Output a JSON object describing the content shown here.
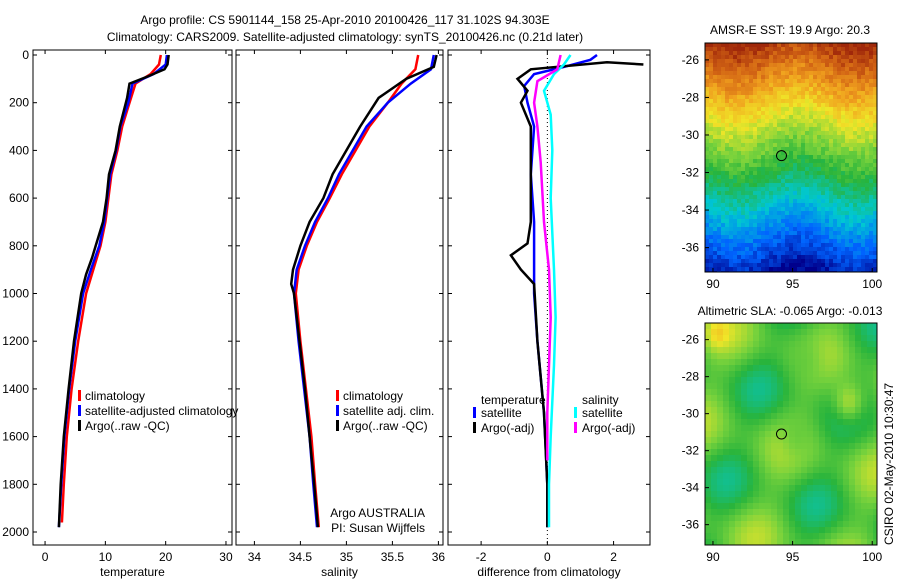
{
  "chart_data": {
    "type": "line",
    "title_line1": "Argo profile: CS 5901144_158 25-Apr-2010 20100426_117 31.102S 94.303E",
    "title_line2": "Climatology: CARS2009. Satellite-adjusted climatology: synTS_20100426.nc (0.21d later)",
    "footer": "CSIRO 02-May-2010 10:30:47",
    "colors": {
      "climatology": "#ff0000",
      "satellite": "#0000ff",
      "argo": "#000000",
      "sal_satellite": "#00ffff",
      "sal_argo": "#ff00ff"
    },
    "depth_axis": {
      "ylim": [
        0,
        2000
      ],
      "ticks": [
        0,
        200,
        400,
        600,
        800,
        1000,
        1200,
        1400,
        1600,
        1800,
        2000
      ],
      "reversed": true
    },
    "panels": [
      {
        "xlabel": "temperature",
        "xlim": [
          -2,
          31
        ],
        "xticks": [
          0,
          10,
          20,
          30
        ],
        "legend": [
          "climatology",
          "satellite-adjusted climatology",
          "Argo(..raw -QC)"
        ],
        "series": [
          {
            "name": "climatology",
            "color": "#ff0000",
            "points": [
              [
                19.2,
                0
              ],
              [
                18.9,
                40
              ],
              [
                17.5,
                80
              ],
              [
                15,
                120
              ],
              [
                14,
                200
              ],
              [
                12.8,
                300
              ],
              [
                12,
                400
              ],
              [
                11,
                500
              ],
              [
                10.5,
                600
              ],
              [
                10,
                700
              ],
              [
                9.2,
                800
              ],
              [
                8,
                900
              ],
              [
                6.8,
                1000
              ],
              [
                5.5,
                1200
              ],
              [
                4.4,
                1400
              ],
              [
                3.6,
                1600
              ],
              [
                3.1,
                1800
              ],
              [
                2.8,
                1960
              ]
            ]
          },
          {
            "name": "satellite",
            "color": "#0000ff",
            "points": [
              [
                20.2,
                0
              ],
              [
                20,
                40
              ],
              [
                18,
                80
              ],
              [
                14.5,
                120
              ],
              [
                13.8,
                200
              ],
              [
                12.5,
                300
              ],
              [
                11.8,
                400
              ],
              [
                10.8,
                500
              ],
              [
                10.3,
                600
              ],
              [
                9.8,
                700
              ],
              [
                9,
                800
              ],
              [
                7.6,
                900
              ],
              [
                6.3,
                1000
              ],
              [
                5,
                1200
              ],
              [
                4,
                1400
              ],
              [
                3.2,
                1600
              ],
              [
                2.7,
                1800
              ],
              [
                2.3,
                1980
              ]
            ]
          },
          {
            "name": "argo",
            "color": "#000000",
            "points": [
              [
                20.5,
                0
              ],
              [
                20.3,
                40
              ],
              [
                19.8,
                60
              ],
              [
                17,
                90
              ],
              [
                14,
                120
              ],
              [
                13.6,
                180
              ],
              [
                12.4,
                300
              ],
              [
                11.7,
                400
              ],
              [
                10.6,
                500
              ],
              [
                10.2,
                600
              ],
              [
                9.6,
                700
              ],
              [
                8.4,
                800
              ],
              [
                7.8,
                850
              ],
              [
                6.8,
                920
              ],
              [
                6,
                1000
              ],
              [
                4.8,
                1200
              ],
              [
                3.9,
                1400
              ],
              [
                3.1,
                1600
              ],
              [
                2.6,
                1800
              ],
              [
                2.3,
                1980
              ]
            ]
          }
        ]
      },
      {
        "xlabel": "salinity",
        "xlim": [
          33.8,
          36.05
        ],
        "xticks": [
          34,
          34.5,
          35,
          35.5,
          36
        ],
        "legend": [
          "climatology",
          "satellite adj. clim.",
          "Argo(..raw -QC)"
        ],
        "annotation": [
          "Argo AUSTRALIA",
          "PI: Susan Wijffels"
        ],
        "series": [
          {
            "name": "climatology",
            "color": "#ff0000",
            "points": [
              [
                35.78,
                0
              ],
              [
                35.75,
                60
              ],
              [
                35.6,
                120
              ],
              [
                35.45,
                200
              ],
              [
                35.25,
                300
              ],
              [
                35.1,
                400
              ],
              [
                34.95,
                500
              ],
              [
                34.82,
                600
              ],
              [
                34.68,
                700
              ],
              [
                34.57,
                800
              ],
              [
                34.48,
                900
              ],
              [
                34.45,
                1000
              ],
              [
                34.5,
                1200
              ],
              [
                34.56,
                1400
              ],
              [
                34.62,
                1600
              ],
              [
                34.66,
                1800
              ],
              [
                34.7,
                1980
              ]
            ]
          },
          {
            "name": "satellite",
            "color": "#0000ff",
            "points": [
              [
                35.95,
                0
              ],
              [
                35.92,
                60
              ],
              [
                35.7,
                120
              ],
              [
                35.45,
                200
              ],
              [
                35.22,
                300
              ],
              [
                35.07,
                400
              ],
              [
                34.92,
                500
              ],
              [
                34.8,
                600
              ],
              [
                34.66,
                700
              ],
              [
                34.55,
                800
              ],
              [
                34.46,
                900
              ],
              [
                34.43,
                1000
              ],
              [
                34.48,
                1200
              ],
              [
                34.54,
                1400
              ],
              [
                34.6,
                1600
              ],
              [
                34.64,
                1800
              ],
              [
                34.68,
                1980
              ]
            ]
          },
          {
            "name": "argo",
            "color": "#000000",
            "points": [
              [
                35.98,
                0
              ],
              [
                35.95,
                50
              ],
              [
                35.65,
                100
              ],
              [
                35.35,
                180
              ],
              [
                35.15,
                300
              ],
              [
                35.0,
                400
              ],
              [
                34.85,
                500
              ],
              [
                34.75,
                600
              ],
              [
                34.6,
                700
              ],
              [
                34.5,
                800
              ],
              [
                34.42,
                900
              ],
              [
                34.4,
                960
              ],
              [
                34.43,
                1000
              ],
              [
                34.49,
                1200
              ],
              [
                34.55,
                1400
              ],
              [
                34.6,
                1600
              ],
              [
                34.65,
                1800
              ],
              [
                34.69,
                1980
              ]
            ]
          }
        ]
      },
      {
        "xlabel": "difference from climatology",
        "xlim": [
          -3,
          3.1
        ],
        "xticks": [
          -2,
          0,
          2
        ],
        "legend_temp": {
          "title": "temperature",
          "items": [
            "satellite",
            "Argo(-adj)"
          ]
        },
        "legend_sal": {
          "title": "salinity",
          "items": [
            "satellite",
            "Argo(-adj)"
          ]
        },
        "series": [
          {
            "name": "temp_satellite",
            "color": "#0000ff",
            "points": [
              [
                1.5,
                0
              ],
              [
                1.3,
                20
              ],
              [
                0.5,
                50
              ],
              [
                -0.4,
                80
              ],
              [
                -0.7,
                130
              ],
              [
                -0.6,
                200
              ],
              [
                -0.4,
                300
              ],
              [
                -0.5,
                500
              ],
              [
                -0.4,
                700
              ],
              [
                -0.4,
                1000
              ],
              [
                -0.3,
                1200
              ],
              [
                -0.1,
                1500
              ],
              [
                0,
                1800
              ],
              [
                0,
                1980
              ]
            ]
          },
          {
            "name": "temp_argo",
            "color": "#000000",
            "points": [
              [
                2.9,
                40
              ],
              [
                1.8,
                30
              ],
              [
                -0.5,
                60
              ],
              [
                -0.9,
                100
              ],
              [
                -0.6,
                150
              ],
              [
                -0.8,
                200
              ],
              [
                -0.5,
                300
              ],
              [
                -0.5,
                500
              ],
              [
                -0.5,
                700
              ],
              [
                -0.6,
                790
              ],
              [
                -1.1,
                840
              ],
              [
                -0.8,
                900
              ],
              [
                -0.4,
                960
              ],
              [
                -0.3,
                1200
              ],
              [
                -0.1,
                1500
              ],
              [
                0,
                1800
              ],
              [
                0,
                1980
              ]
            ]
          },
          {
            "name": "sal_satellite",
            "color": "#00ffff",
            "points": [
              [
                0.7,
                0
              ],
              [
                0.5,
                40
              ],
              [
                0.2,
                80
              ],
              [
                -0.1,
                150
              ],
              [
                0.1,
                250
              ],
              [
                0.15,
                400
              ],
              [
                0.1,
                600
              ],
              [
                0.2,
                900
              ],
              [
                0.25,
                1100
              ],
              [
                0.2,
                1300
              ],
              [
                0.1,
                1600
              ],
              [
                0.05,
                1800
              ],
              [
                0.05,
                1980
              ]
            ]
          },
          {
            "name": "sal_argo",
            "color": "#ff00ff",
            "points": [
              [
                0.4,
                0
              ],
              [
                0.3,
                60
              ],
              [
                -0.3,
                110
              ],
              [
                -0.4,
                200
              ],
              [
                -0.3,
                300
              ],
              [
                -0.2,
                450
              ],
              [
                -0.1,
                700
              ],
              [
                0.05,
                900
              ],
              [
                0.1,
                1100
              ],
              [
                0.05,
                1300
              ],
              [
                0,
                1500
              ],
              [
                0,
                1700
              ]
            ]
          }
        ]
      }
    ],
    "maps": [
      {
        "title": "AMSR-E SST: 19.9 Argo: 20.3",
        "field": "sst",
        "lon": [
          89.5,
          100.3
        ],
        "lat": [
          -37.3,
          -25.1
        ],
        "xticks": [
          90,
          95,
          100
        ],
        "yticks": [
          -26,
          -28,
          -30,
          -32,
          -34,
          -36
        ]
      },
      {
        "title": "Altimetric SLA: -0.065 Argo: -0.013",
        "field": "sla",
        "lon": [
          89.5,
          100.3
        ],
        "lat": [
          -37.1,
          -25.1
        ],
        "xticks": [
          90,
          95,
          100
        ],
        "yticks": [
          -26,
          -28,
          -30,
          -32,
          -34,
          -36
        ]
      }
    ],
    "float_position": {
      "lon": 94.303,
      "lat": -31.102
    }
  }
}
